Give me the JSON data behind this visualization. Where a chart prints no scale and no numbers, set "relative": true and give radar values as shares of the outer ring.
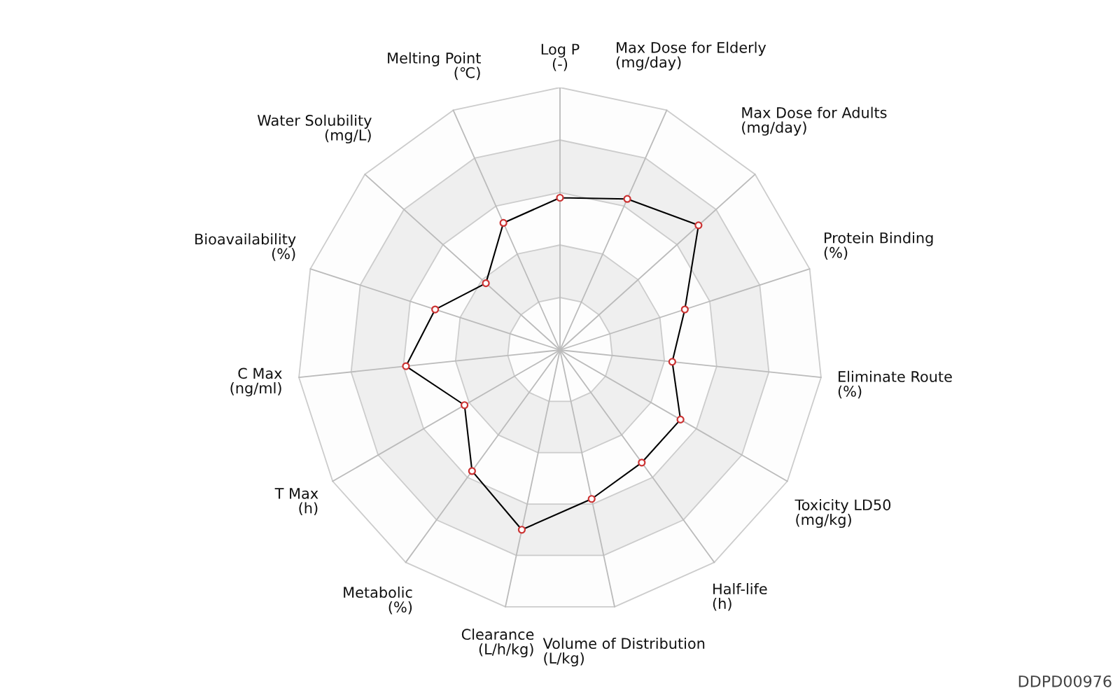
{
  "chart_data": {
    "type": "radar",
    "relative": true,
    "categories": [
      "Log P\n(-)",
      "Max Dose for Elderly\n(mg/day)",
      "Max Dose for Adults\n(mg/day)",
      "Protein Binding\n(%)",
      "Eliminate Route\n(%)",
      "Toxicity LD50\n(mg/kg)",
      "Half-life\n(h)",
      "Volume of Distribution\n(L/kg)",
      "Clearance\n(L/h/kg)",
      "Metabolic\n(%)",
      "T Max\n(h)",
      "C Max\n(ng/ml)",
      "Bioavailability\n(%)",
      "Water Solubility\n(mg/L)",
      "Melting Point\n(℃)"
    ],
    "series": [
      {
        "color": "#000000",
        "colors": [
          "#cc3333",
          "#cc3333",
          "#cc3333",
          "#cc3333",
          "#cc3333",
          "#cc3333",
          "#cc3333",
          "#cc3333",
          "#cc3333",
          "#cc3333",
          "#cc3333",
          "#cc3333",
          "#cc3333",
          "#cc3333",
          "#cc3333"
        ],
        "values": [
          0.58,
          0.63,
          0.71,
          0.5,
          0.43,
          0.53,
          0.53,
          0.58,
          0.7,
          0.57,
          0.42,
          0.59,
          0.5,
          0.38,
          0.53
        ]
      }
    ],
    "marker": "circle",
    "grid": true,
    "annotations": [
      "DDPD00976"
    ]
  }
}
